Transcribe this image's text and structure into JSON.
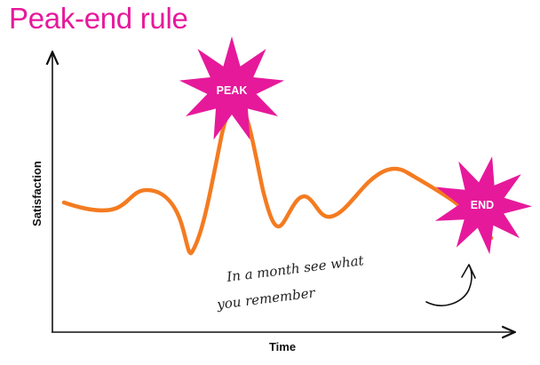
{
  "title": "Peak-end rule",
  "colors": {
    "title": "#e6199b",
    "curve": "#f47b20",
    "burst": "#e6199b",
    "axis": "#111111"
  },
  "diagram": {
    "y_axis_label": "Satisfaction",
    "x_axis_label": "Time",
    "peak_label": "PEAK",
    "end_label": "END",
    "note_line1": "In a month see what",
    "note_line2": "you remember"
  }
}
